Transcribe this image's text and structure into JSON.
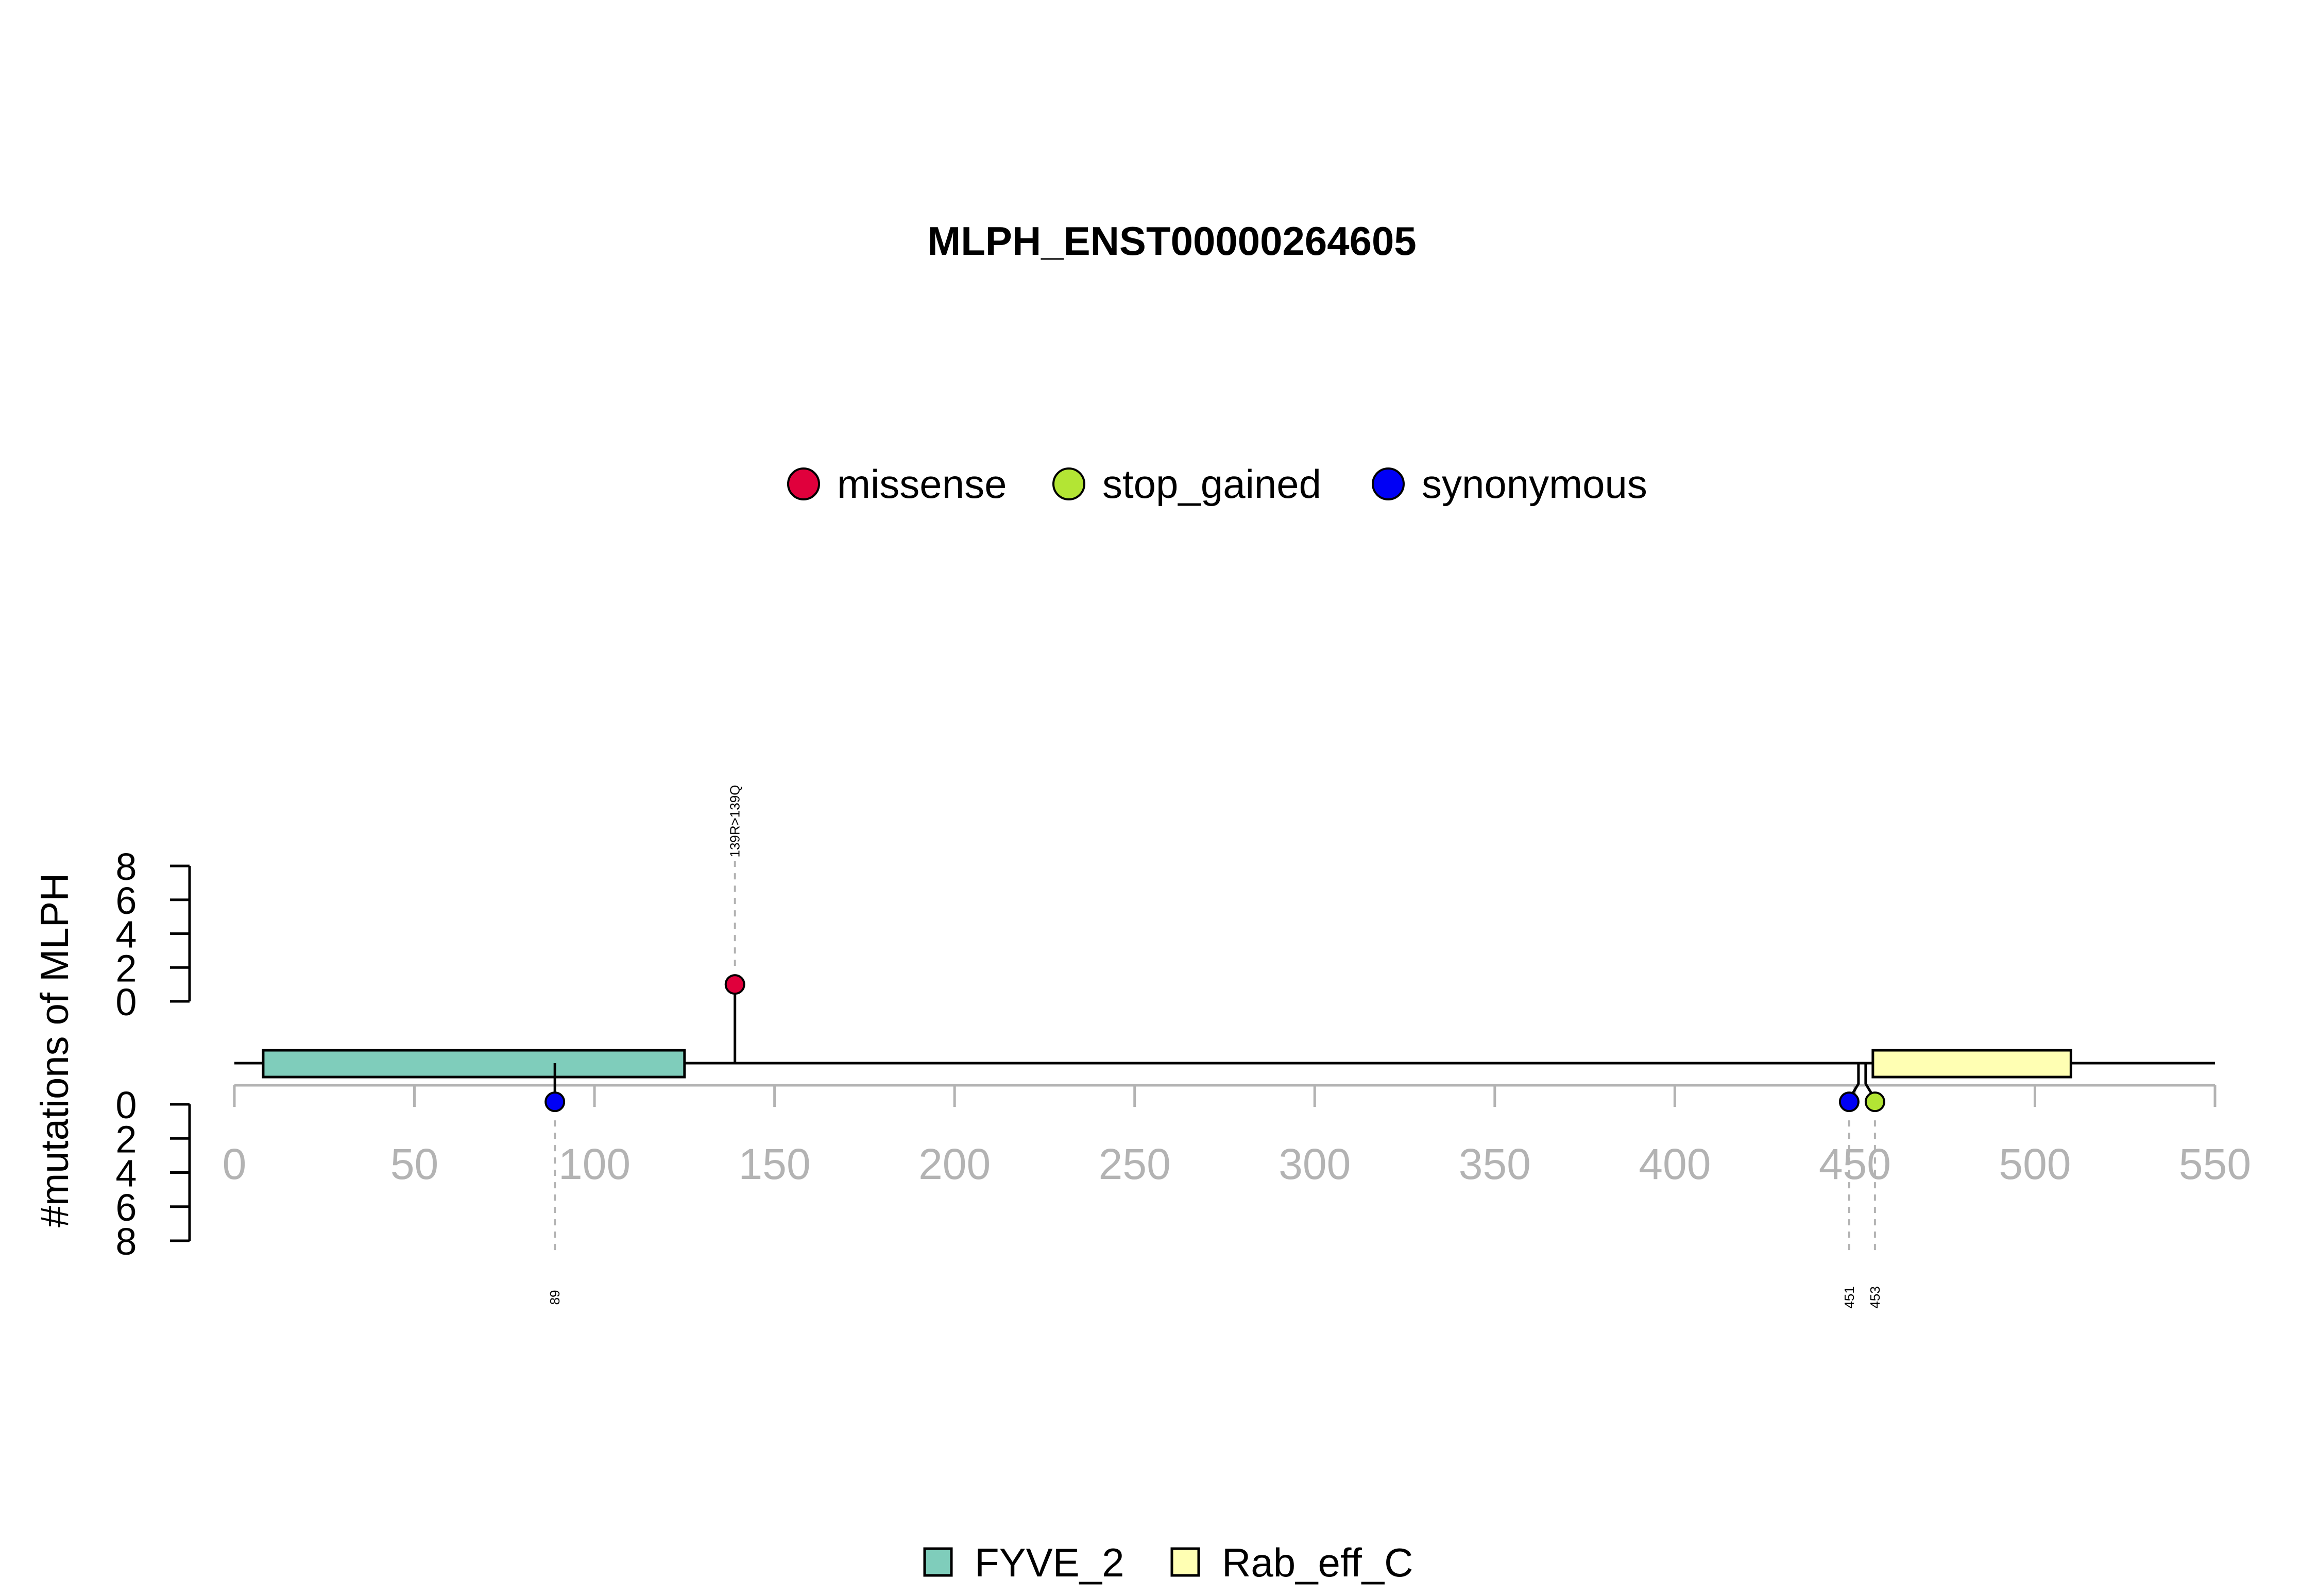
{
  "chart_data": {
    "type": "lollipop",
    "title": "MLPH_ENST00000264605",
    "ylabel": "#mutations of MLPH",
    "xlim": [
      0,
      550
    ],
    "x_ticks": [
      0,
      50,
      100,
      150,
      200,
      250,
      300,
      350,
      400,
      450,
      500,
      550
    ],
    "y_ticks": [
      0,
      2,
      4,
      6,
      8
    ],
    "ylim": [
      0,
      8
    ],
    "mutation_legend": [
      {
        "name": "missense",
        "color": "#e0003c"
      },
      {
        "name": "stop_gained",
        "color": "#b3e534"
      },
      {
        "name": "synonymous",
        "color": "#0000f5"
      }
    ],
    "domain_legend": [
      {
        "name": "FYVE_2",
        "color": "#7fcdbb"
      },
      {
        "name": "Rab_eff_C",
        "color": "#ffffb3"
      }
    ],
    "domains": [
      {
        "name": "FYVE_2",
        "start": 8,
        "end": 125
      },
      {
        "name": "Rab_eff_C",
        "start": 455,
        "end": 510
      }
    ],
    "mutations": [
      {
        "position": 139,
        "count": 1,
        "type": "missense",
        "side": "top",
        "label": "139R>139Q"
      },
      {
        "position": 89,
        "count": 1,
        "type": "synonymous",
        "side": "bottom",
        "label": "89"
      },
      {
        "position": 451,
        "count": 1,
        "type": "synonymous",
        "side": "bottom",
        "label": "451"
      },
      {
        "position": 453,
        "count": 1,
        "type": "stop_gained",
        "side": "bottom",
        "label": "453"
      }
    ]
  }
}
